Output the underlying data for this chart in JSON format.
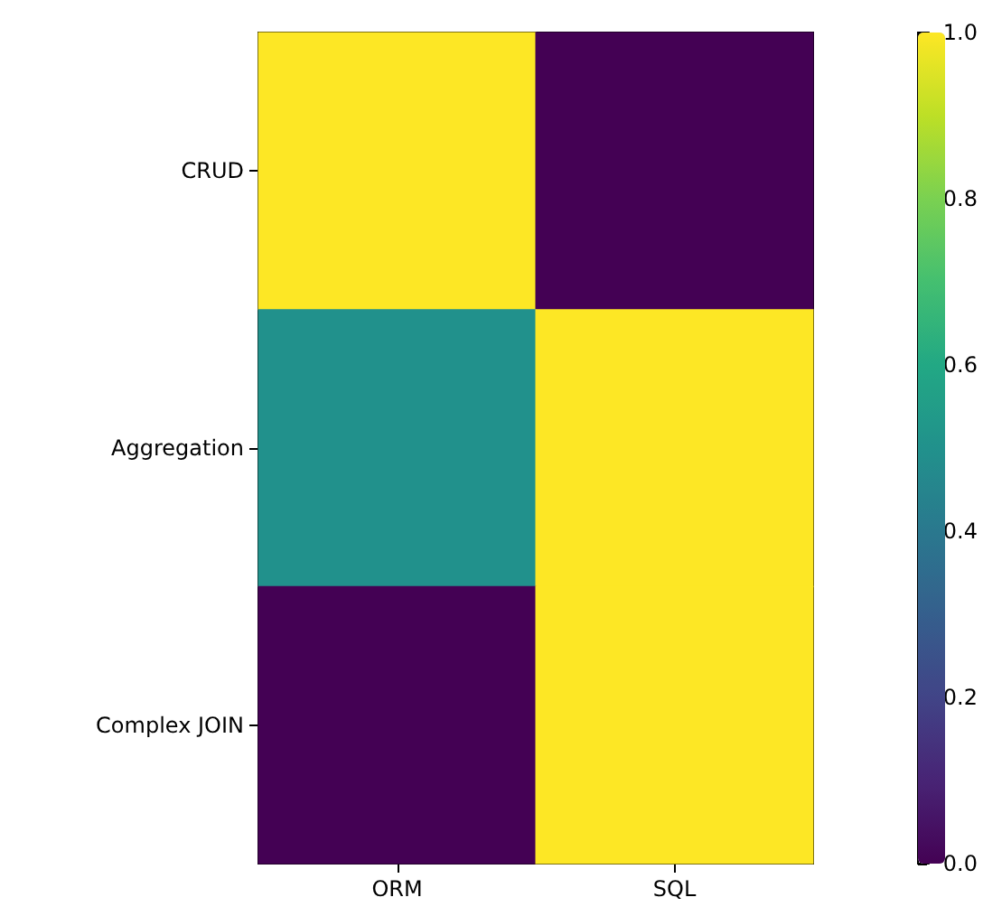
{
  "chart_data": {
    "type": "heatmap",
    "categories": [
      "ORM",
      "SQL"
    ],
    "y_categories": [
      "CRUD",
      "Aggregation",
      "Complex JOIN"
    ],
    "cells": [
      [
        1,
        0
      ],
      [
        0.5,
        1
      ],
      [
        0,
        1
      ]
    ],
    "clim": [
      0,
      1
    ],
    "cticks": [
      {
        "value": 0,
        "label": "0.0"
      },
      0.2,
      0.4,
      0.6,
      0.8,
      {
        "value": 1,
        "label": "1.0"
      }
    ]
  }
}
